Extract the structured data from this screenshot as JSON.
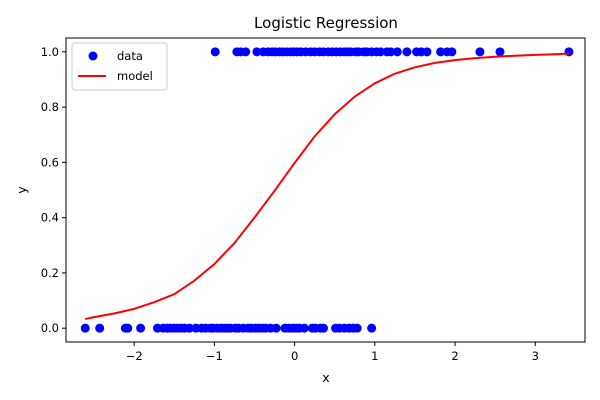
{
  "chart_data": {
    "type": "scatter",
    "title": "Logistic Regression",
    "xlabel": "x",
    "ylabel": "y",
    "xlim": [
      -2.85,
      3.62
    ],
    "ylim": [
      -0.05,
      1.05
    ],
    "xticks": [
      "−2",
      "−1",
      "0",
      "1",
      "2",
      "3"
    ],
    "xtick_values": [
      -2,
      -1,
      0,
      1,
      2,
      3
    ],
    "yticks": [
      "0.0",
      "0.2",
      "0.4",
      "0.6",
      "0.8",
      "1.0"
    ],
    "ytick_values": [
      0,
      0.2,
      0.4,
      0.6,
      0.8,
      1.0
    ],
    "grid": false,
    "legend_position": "upper-left",
    "series": [
      {
        "name": "data",
        "kind": "scatter",
        "color": "#0000ff",
        "x0": [
          -2.61,
          -2.43,
          -2.11,
          -2.08,
          -1.92,
          -1.71,
          -1.64,
          -1.59,
          -1.55,
          -1.5,
          -1.46,
          -1.41,
          -1.37,
          -1.31,
          -1.23,
          -1.16,
          -1.11,
          -1.05,
          -1.02,
          -0.97,
          -0.92,
          -0.88,
          -0.84,
          -0.8,
          -0.74,
          -0.7,
          -0.64,
          -0.58,
          -0.54,
          -0.49,
          -0.45,
          -0.4,
          -0.36,
          -0.3,
          -0.23,
          -0.12,
          -0.07,
          -0.02,
          0.02,
          0.06,
          0.12,
          0.22,
          0.26,
          0.32,
          0.36,
          0.51,
          0.56,
          0.62,
          0.68,
          0.73,
          0.78,
          0.96
        ],
        "x1": [
          -0.99,
          -0.72,
          -0.67,
          -0.61,
          -0.47,
          -0.39,
          -0.33,
          -0.28,
          -0.24,
          -0.19,
          -0.15,
          -0.1,
          -0.05,
          -0.01,
          0.03,
          0.08,
          0.14,
          0.2,
          0.25,
          0.31,
          0.36,
          0.42,
          0.47,
          0.52,
          0.57,
          0.62,
          0.66,
          0.7,
          0.76,
          0.8,
          0.86,
          0.9,
          0.96,
          1.02,
          1.07,
          1.15,
          1.2,
          1.28,
          1.4,
          1.52,
          1.58,
          1.65,
          1.82,
          1.9,
          1.96,
          2.31,
          2.56,
          3.42
        ]
      },
      {
        "name": "model",
        "kind": "line",
        "color": "#ff0000",
        "x": [
          -2.61,
          -2.5,
          -2.25,
          -2.0,
          -1.75,
          -1.5,
          -1.25,
          -1.0,
          -0.75,
          -0.5,
          -0.25,
          0.0,
          0.25,
          0.5,
          0.75,
          1.0,
          1.25,
          1.5,
          1.75,
          2.0,
          2.25,
          2.5,
          2.75,
          3.0,
          3.25,
          3.42
        ],
        "y": [
          0.033,
          0.04,
          0.053,
          0.07,
          0.094,
          0.123,
          0.172,
          0.232,
          0.308,
          0.4,
          0.497,
          0.598,
          0.694,
          0.774,
          0.838,
          0.886,
          0.921,
          0.944,
          0.96,
          0.97,
          0.977,
          0.982,
          0.986,
          0.989,
          0.991,
          0.993
        ]
      }
    ]
  }
}
